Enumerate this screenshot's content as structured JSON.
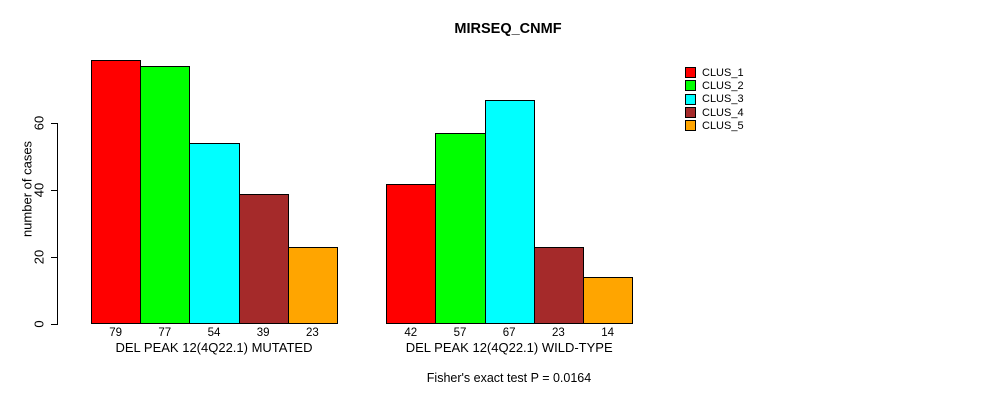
{
  "chart_data": {
    "type": "bar",
    "title": "MIRSEQ_CNMF",
    "xlabel": "",
    "ylabel": "number of cases",
    "ylim": [
      0,
      60
    ],
    "yticks": [
      0,
      20,
      40,
      60
    ],
    "grid": false,
    "legend_position": "top-right",
    "series_labels": [
      "CLUS_1",
      "CLUS_2",
      "CLUS_3",
      "CLUS_4",
      "CLUS_5"
    ],
    "colors": [
      "#FF0000",
      "#00FF00",
      "#00FFFF",
      "#A52A2A",
      "#FFA500"
    ],
    "groups": [
      {
        "label": "DEL PEAK 12(4Q22.1) MUTATED",
        "values": [
          79,
          77,
          54,
          39,
          23
        ]
      },
      {
        "label": "DEL PEAK 12(4Q22.1) WILD-TYPE",
        "values": [
          42,
          57,
          67,
          23,
          14
        ]
      }
    ],
    "bar_value_labels_shown": true,
    "annotation": "Fisher's exact test P = 0.0164"
  }
}
